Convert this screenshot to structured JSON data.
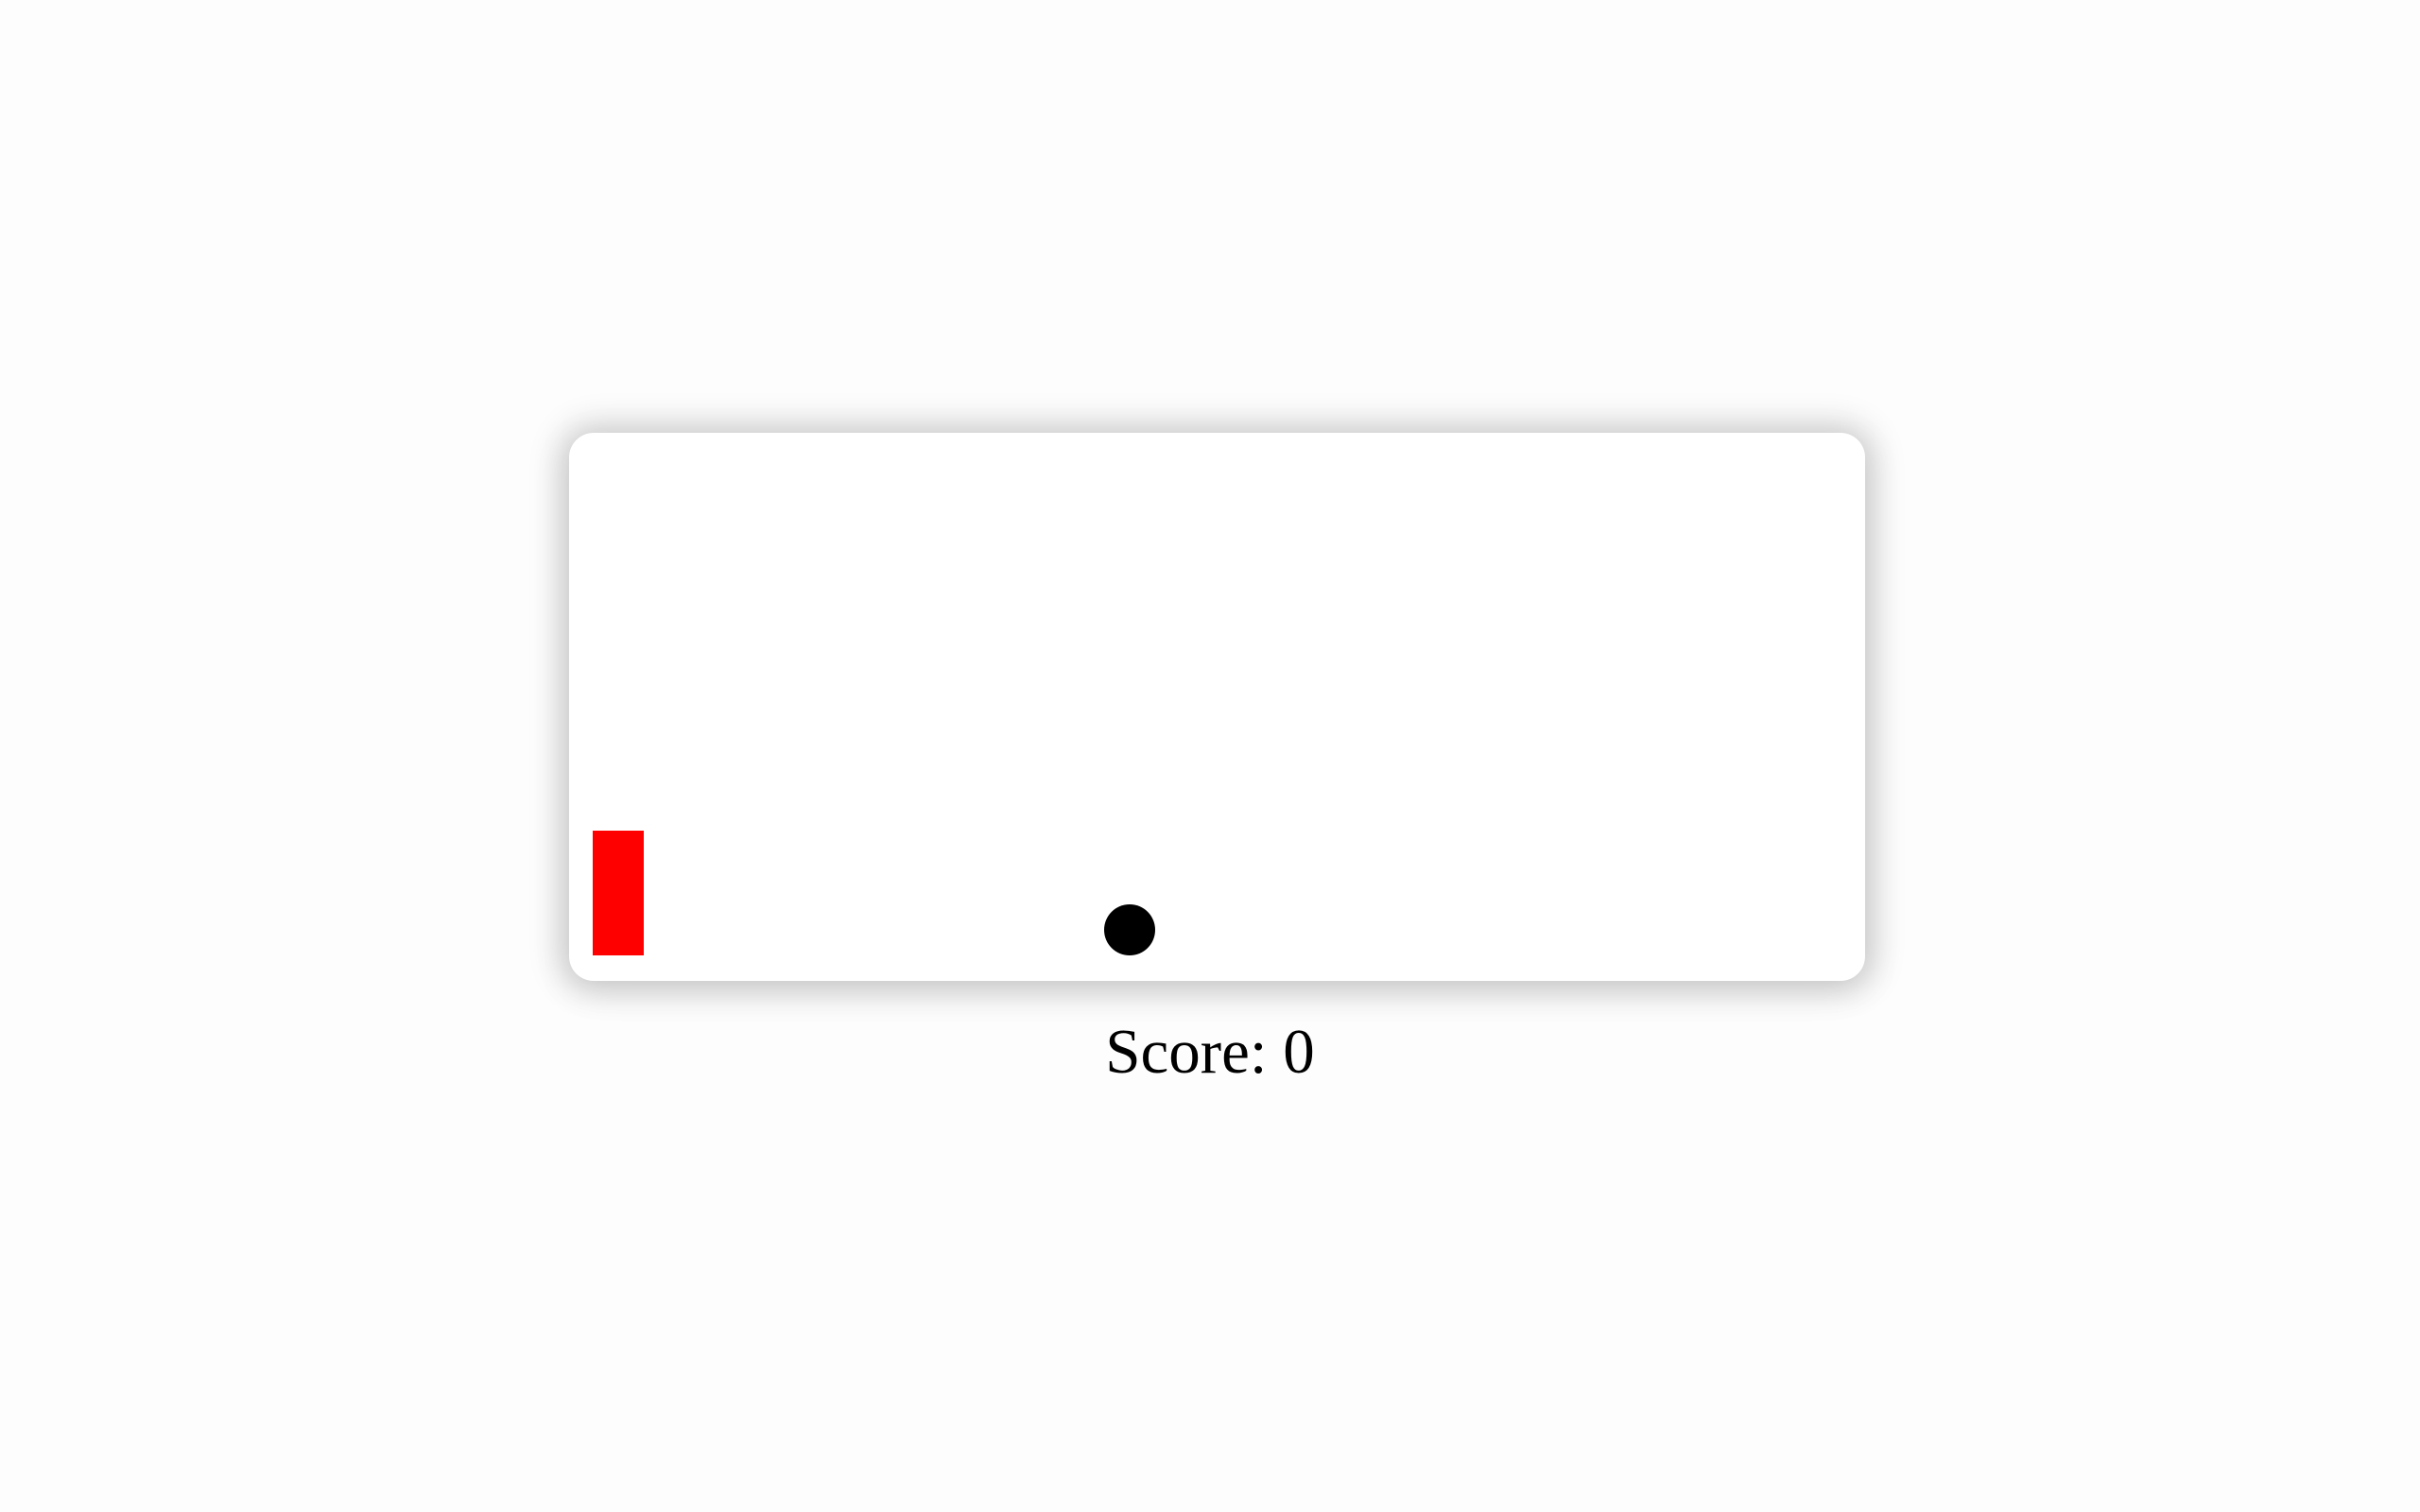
{
  "score": {
    "text": "Score: 0"
  },
  "colors": {
    "background": "#fdfdfd",
    "board": "#ffffff",
    "player": "#ff0000",
    "ball": "#000000"
  },
  "icons": {
    "player": "red-rectangle-block",
    "ball": "black-circle"
  }
}
